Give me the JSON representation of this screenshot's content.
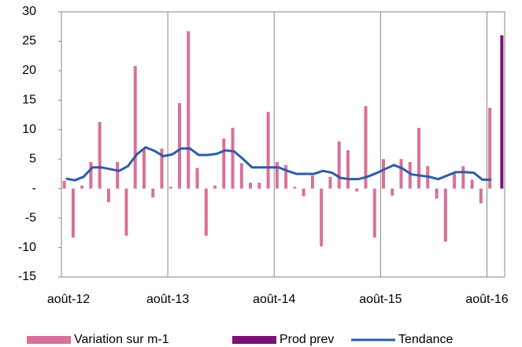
{
  "chart_data": {
    "type": "bar_line",
    "categories": [
      "août-12",
      null,
      null,
      null,
      null,
      null,
      null,
      null,
      null,
      null,
      null,
      null,
      "août-13",
      null,
      null,
      null,
      null,
      null,
      null,
      null,
      null,
      null,
      null,
      null,
      "août-14",
      null,
      null,
      null,
      null,
      null,
      null,
      null,
      null,
      null,
      null,
      null,
      "août-15",
      null,
      null,
      null,
      null,
      null,
      null,
      null,
      null,
      null,
      null,
      null,
      "août-16",
      null
    ],
    "series": [
      {
        "name": "Variation sur m-1",
        "type": "bar",
        "color": "#d8709a",
        "values": [
          1.3,
          -8.3,
          0.5,
          4.5,
          11.3,
          -2.3,
          4.5,
          -8.0,
          20.8,
          6.7,
          -1.5,
          6.8,
          0.3,
          14.5,
          26.7,
          3.5,
          -8.0,
          0.5,
          8.5,
          10.3,
          4.3,
          1.0,
          1.0,
          13.0,
          4.5,
          4.0,
          0.3,
          -1.3,
          2.2,
          -9.8,
          2.0,
          8.0,
          6.5,
          -0.5,
          14.0,
          -8.3,
          5.0,
          -1.2,
          5.0,
          4.5,
          10.3,
          3.8,
          -1.7,
          -9.0,
          2.5,
          3.8,
          1.5,
          -2.5,
          13.7,
          null
        ]
      },
      {
        "name": "Prod prev",
        "type": "bar",
        "color": "#7b1173",
        "values": [
          null,
          null,
          null,
          null,
          null,
          null,
          null,
          null,
          null,
          null,
          null,
          null,
          null,
          null,
          null,
          null,
          null,
          null,
          null,
          null,
          null,
          null,
          null,
          null,
          null,
          null,
          null,
          null,
          null,
          null,
          null,
          null,
          null,
          null,
          null,
          null,
          null,
          null,
          null,
          null,
          null,
          null,
          null,
          null,
          null,
          null,
          null,
          null,
          null,
          26.0
        ]
      },
      {
        "name": "Tendance",
        "type": "line",
        "color": "#2e5ca8",
        "values": [
          1.7,
          1.4,
          2.0,
          3.6,
          3.6,
          3.3,
          3.0,
          3.8,
          5.8,
          7.0,
          6.4,
          5.5,
          5.8,
          6.8,
          6.8,
          5.7,
          5.7,
          5.9,
          6.5,
          6.3,
          5.0,
          3.6,
          3.6,
          3.6,
          3.6,
          3.0,
          2.5,
          2.5,
          2.5,
          3.0,
          2.7,
          1.8,
          1.6,
          1.6,
          2.0,
          2.6,
          3.3,
          4.0,
          3.4,
          2.4,
          2.2,
          2.0,
          1.6,
          2.2,
          2.8,
          2.8,
          2.7,
          1.5,
          1.5,
          null
        ]
      }
    ],
    "ylim": [
      -15,
      30
    ],
    "yticks": [
      -15,
      -10,
      -5,
      {
        "value": 0,
        "label": "-"
      },
      5,
      10,
      15,
      20,
      25,
      30
    ],
    "grid": "x",
    "legend": "bottom"
  }
}
